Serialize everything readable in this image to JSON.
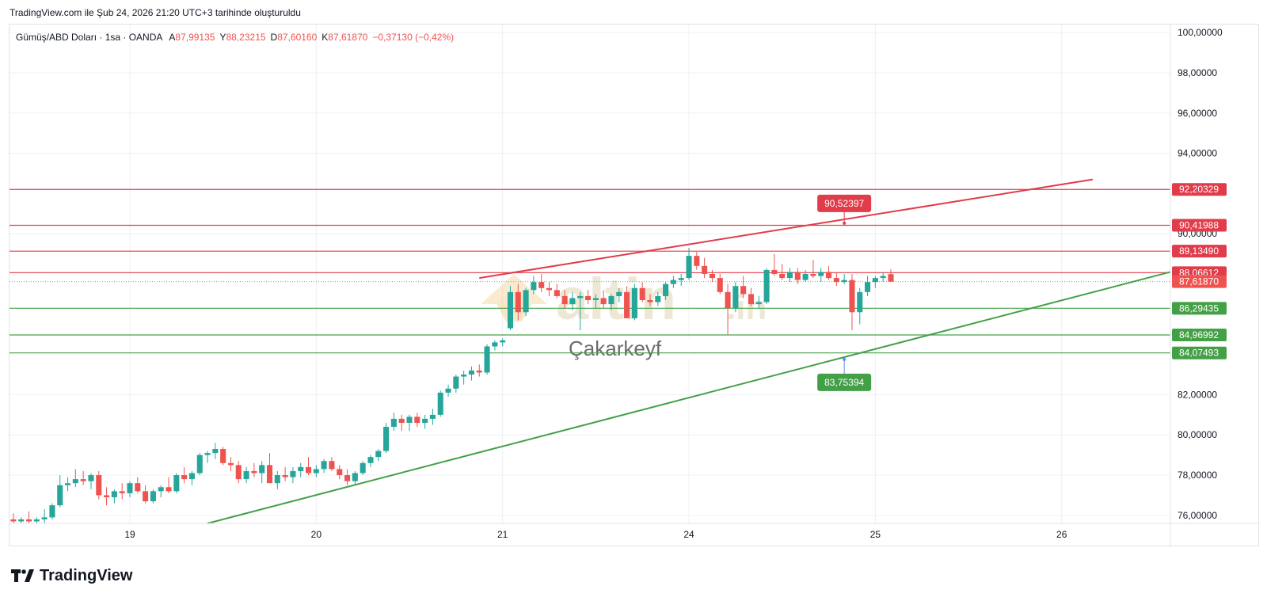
{
  "header": {
    "created_text": "TradingView.com ile Şub 24, 2026 21:20 UTC+3 tarihinde oluşturuldu"
  },
  "legend": {
    "symbol": "Gümüş/ABD Doları · 1sa · OANDA",
    "open_label": "A",
    "open_value": "87,99135",
    "high_label": "Y",
    "high_value": "88,23215",
    "low_label": "D",
    "low_value": "87,60160",
    "close_label": "K",
    "close_value": "87,61870",
    "change": "−0,37130 (−0,42%)"
  },
  "watermark": {
    "brand": "altin",
    "brand_suffix": ".in",
    "subtitle": "Çakarkeyf"
  },
  "footer": {
    "logo_text": "TradingView"
  },
  "colors": {
    "up": "#26a69a",
    "down": "#ef5350",
    "resistance": "#e03c4a",
    "support": "#43a047",
    "grid": "#eef0f4"
  },
  "chart_data": {
    "type": "candlestick",
    "y_axis_ticks": [
      "100,00000",
      "98,00000",
      "96,00000",
      "94,00000",
      "90,00000",
      "82,00000",
      "80,00000",
      "78,00000",
      "76,00000"
    ],
    "y_axis_tick_values": [
      100,
      98,
      96,
      94,
      90,
      82,
      80,
      78,
      76
    ],
    "ylim": [
      75.6,
      100.4
    ],
    "x_axis_ticks": [
      {
        "label": "19",
        "index": 16
      },
      {
        "label": "20",
        "index": 40
      },
      {
        "label": "21",
        "index": 64
      },
      {
        "label": "24",
        "index": 88
      },
      {
        "label": "25",
        "index": 112
      },
      {
        "label": "26",
        "index": 136
      }
    ],
    "xlim": [
      0.5,
      150
    ],
    "horizontal_lines": [
      {
        "value": 92.20329,
        "label": "92,20329",
        "kind": "resistance"
      },
      {
        "value": 90.41988,
        "label": "90,41988",
        "kind": "resistance"
      },
      {
        "value": 89.1349,
        "label": "89,13490",
        "kind": "resistance"
      },
      {
        "value": 88.06612,
        "label": "88,06612",
        "kind": "resistance"
      },
      {
        "value": 86.29435,
        "label": "86,29435",
        "kind": "support"
      },
      {
        "value": 84.96992,
        "label": "84,96992",
        "kind": "support"
      },
      {
        "value": 84.07493,
        "label": "84,07493",
        "kind": "support"
      }
    ],
    "last_price": {
      "value": 87.6187,
      "label": "87,61870"
    },
    "trend_lines": [
      {
        "kind": "resistance",
        "x1": 61,
        "y1": 87.8,
        "x2": 140,
        "y2": 92.7
      },
      {
        "kind": "support",
        "x1": 26,
        "y1": 75.6,
        "x2": 150,
        "y2": 88.1
      }
    ],
    "callouts": [
      {
        "label": "90,52397",
        "value": 90.52397,
        "x": 108,
        "kind": "resistance"
      },
      {
        "label": "83,75394",
        "value": 83.75394,
        "x": 108,
        "kind": "support"
      }
    ],
    "candles": [
      [
        75.8,
        76.1,
        75.6,
        75.7
      ],
      [
        75.7,
        75.9,
        75.6,
        75.8
      ],
      [
        75.8,
        76.2,
        75.6,
        75.7
      ],
      [
        75.7,
        75.9,
        75.6,
        75.8
      ],
      [
        75.8,
        76.3,
        75.6,
        75.9
      ],
      [
        75.9,
        76.6,
        75.8,
        76.5
      ],
      [
        76.5,
        78.0,
        76.4,
        77.5
      ],
      [
        77.5,
        77.9,
        77.2,
        77.6
      ],
      [
        77.6,
        78.3,
        77.4,
        77.8
      ],
      [
        77.8,
        78.2,
        77.5,
        77.7
      ],
      [
        77.7,
        78.1,
        77.3,
        78.0
      ],
      [
        78.0,
        78.2,
        76.8,
        77.0
      ],
      [
        77.0,
        77.4,
        76.5,
        76.9
      ],
      [
        76.9,
        77.3,
        76.6,
        77.2
      ],
      [
        77.2,
        77.6,
        76.8,
        77.1
      ],
      [
        77.1,
        77.7,
        76.9,
        77.6
      ],
      [
        77.6,
        77.9,
        77.1,
        77.2
      ],
      [
        77.2,
        77.5,
        76.6,
        76.7
      ],
      [
        76.7,
        77.3,
        76.6,
        77.2
      ],
      [
        77.2,
        77.5,
        76.9,
        77.4
      ],
      [
        77.4,
        77.9,
        77.1,
        77.2
      ],
      [
        77.2,
        78.1,
        77.1,
        78.0
      ],
      [
        78.0,
        78.4,
        77.6,
        77.8
      ],
      [
        77.8,
        78.2,
        77.5,
        78.1
      ],
      [
        78.1,
        79.1,
        78.0,
        79.0
      ],
      [
        79.0,
        79.2,
        78.6,
        79.1
      ],
      [
        79.1,
        79.6,
        78.8,
        79.3
      ],
      [
        79.3,
        79.4,
        78.5,
        78.6
      ],
      [
        78.6,
        78.9,
        78.2,
        78.5
      ],
      [
        78.5,
        78.7,
        77.6,
        77.8
      ],
      [
        77.8,
        78.4,
        77.6,
        78.2
      ],
      [
        78.2,
        78.6,
        77.9,
        78.1
      ],
      [
        78.1,
        78.7,
        77.6,
        78.5
      ],
      [
        78.5,
        79.1,
        77.6,
        77.6
      ],
      [
        77.6,
        78.2,
        77.3,
        78.0
      ],
      [
        78.0,
        78.4,
        77.7,
        77.9
      ],
      [
        77.9,
        78.4,
        77.6,
        78.2
      ],
      [
        78.2,
        78.6,
        77.9,
        78.4
      ],
      [
        78.4,
        78.9,
        78.0,
        78.1
      ],
      [
        78.1,
        78.5,
        77.9,
        78.3
      ],
      [
        78.3,
        78.8,
        78.1,
        78.7
      ],
      [
        78.7,
        78.9,
        78.2,
        78.3
      ],
      [
        78.3,
        78.5,
        77.8,
        78.0
      ],
      [
        78.0,
        78.3,
        77.5,
        77.7
      ],
      [
        77.7,
        78.2,
        77.5,
        78.1
      ],
      [
        78.1,
        78.7,
        78.0,
        78.6
      ],
      [
        78.6,
        79.0,
        78.4,
        78.9
      ],
      [
        78.9,
        79.3,
        78.7,
        79.2
      ],
      [
        79.2,
        80.6,
        79.1,
        80.4
      ],
      [
        80.4,
        81.1,
        80.2,
        80.8
      ],
      [
        80.8,
        81.0,
        80.2,
        80.6
      ],
      [
        80.6,
        81.0,
        80.2,
        80.9
      ],
      [
        80.9,
        81.1,
        80.4,
        80.6
      ],
      [
        80.6,
        81.0,
        80.3,
        80.8
      ],
      [
        80.8,
        81.3,
        80.5,
        81.0
      ],
      [
        81.0,
        82.2,
        80.9,
        82.1
      ],
      [
        82.1,
        82.5,
        81.9,
        82.3
      ],
      [
        82.3,
        83.0,
        82.1,
        82.9
      ],
      [
        82.9,
        83.2,
        82.5,
        83.0
      ],
      [
        83.0,
        83.4,
        82.7,
        83.2
      ],
      [
        83.2,
        83.5,
        82.9,
        83.1
      ],
      [
        83.1,
        84.5,
        83.0,
        84.4
      ],
      [
        84.4,
        84.7,
        84.2,
        84.6
      ],
      [
        84.6,
        84.8,
        84.4,
        84.7
      ],
      [
        85.3,
        87.4,
        85.2,
        87.1
      ],
      [
        87.1,
        87.5,
        85.7,
        86.1
      ],
      [
        86.1,
        87.3,
        85.9,
        87.2
      ],
      [
        87.2,
        87.9,
        87.0,
        87.6
      ],
      [
        87.6,
        88.0,
        87.1,
        87.3
      ],
      [
        87.3,
        87.6,
        86.9,
        87.2
      ],
      [
        87.2,
        87.5,
        86.8,
        86.9
      ],
      [
        86.9,
        87.2,
        86.3,
        86.5
      ],
      [
        86.5,
        87.1,
        86.2,
        86.8
      ],
      [
        86.8,
        87.1,
        85.2,
        86.9
      ],
      [
        86.9,
        87.2,
        86.5,
        86.7
      ],
      [
        86.7,
        87.0,
        86.3,
        86.8
      ],
      [
        86.8,
        87.2,
        86.3,
        86.5
      ],
      [
        86.5,
        87.0,
        86.2,
        86.9
      ],
      [
        86.9,
        87.3,
        86.6,
        87.1
      ],
      [
        87.1,
        87.4,
        85.8,
        85.8
      ],
      [
        85.8,
        87.5,
        85.7,
        87.3
      ],
      [
        87.3,
        87.6,
        86.6,
        86.7
      ],
      [
        86.7,
        87.0,
        86.4,
        86.6
      ],
      [
        86.6,
        87.1,
        86.4,
        86.9
      ],
      [
        86.9,
        87.6,
        86.7,
        87.5
      ],
      [
        87.5,
        87.9,
        87.3,
        87.7
      ],
      [
        87.7,
        88.0,
        87.4,
        87.8
      ],
      [
        87.8,
        89.3,
        87.7,
        88.9
      ],
      [
        88.9,
        89.1,
        88.2,
        88.4
      ],
      [
        88.4,
        88.8,
        87.8,
        88.0
      ],
      [
        88.0,
        88.2,
        87.6,
        87.8
      ],
      [
        87.8,
        88.0,
        87.0,
        87.1
      ],
      [
        87.1,
        87.5,
        85.0,
        86.3
      ],
      [
        86.3,
        87.6,
        86.1,
        87.4
      ],
      [
        87.4,
        87.9,
        86.8,
        87.0
      ],
      [
        87.0,
        87.3,
        86.4,
        86.5
      ],
      [
        86.5,
        86.9,
        86.3,
        86.6
      ],
      [
        86.6,
        88.3,
        86.5,
        88.2
      ],
      [
        88.2,
        89.0,
        87.9,
        88.0
      ],
      [
        88.0,
        88.5,
        87.7,
        87.8
      ],
      [
        87.8,
        88.3,
        87.6,
        88.1
      ],
      [
        88.1,
        88.3,
        87.5,
        87.7
      ],
      [
        87.7,
        88.2,
        87.6,
        88.0
      ],
      [
        88.0,
        88.7,
        87.8,
        87.9
      ],
      [
        87.9,
        88.3,
        87.6,
        88.1
      ],
      [
        88.1,
        88.4,
        87.7,
        87.8
      ],
      [
        87.8,
        88.1,
        87.4,
        87.6
      ],
      [
        87.6,
        88.0,
        87.5,
        87.7
      ],
      [
        87.7,
        88.0,
        85.2,
        86.1
      ],
      [
        86.1,
        87.3,
        85.5,
        87.1
      ],
      [
        87.1,
        87.9,
        86.9,
        87.6
      ],
      [
        87.6,
        87.9,
        87.3,
        87.8
      ],
      [
        87.8,
        88.1,
        87.6,
        87.9
      ],
      [
        87.99135,
        88.23215,
        87.6016,
        87.6187
      ]
    ]
  }
}
